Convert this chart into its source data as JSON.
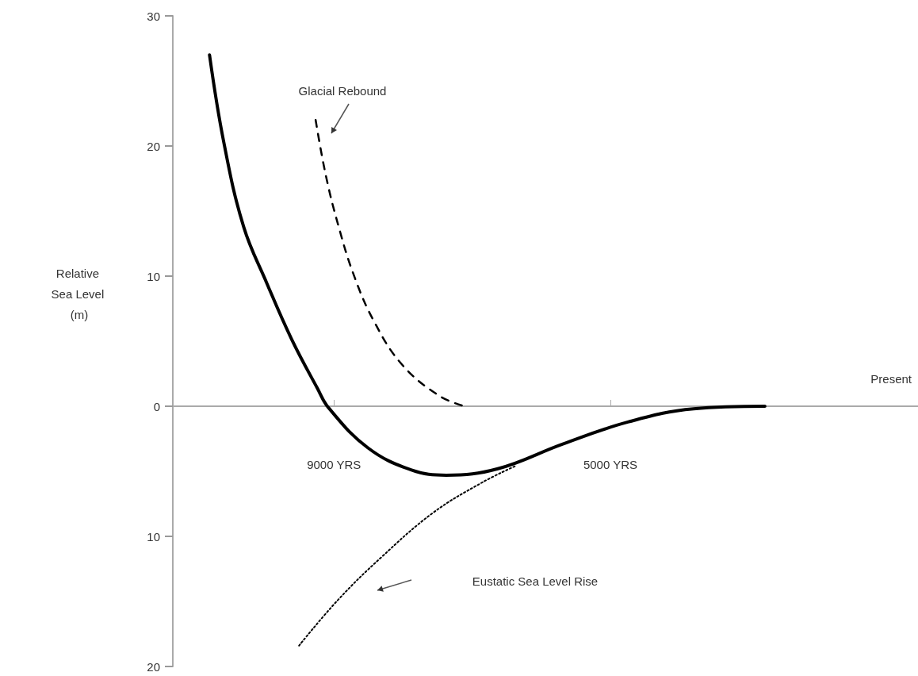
{
  "chart_data": {
    "type": "line",
    "ylabel": "Relative Sea Level (m)",
    "xlim": [
      11330,
      550
    ],
    "ylim": [
      -20,
      30
    ],
    "xticks": [
      {
        "value": 9000,
        "label": "9000 YRS"
      },
      {
        "value": 5000,
        "label": "5000 YRS"
      }
    ],
    "yticks": [
      {
        "value": -20,
        "label": "20"
      },
      {
        "value": -10,
        "label": "10"
      },
      {
        "value": 0,
        "label": "0"
      },
      {
        "value": 10,
        "label": "10"
      },
      {
        "value": 20,
        "label": "20"
      },
      {
        "value": 30,
        "label": "30"
      }
    ],
    "marker": "none",
    "series": [
      {
        "color": "#000000",
        "line_style": "solid",
        "x": [
          10799,
          10593,
          10306,
          9974,
          9607,
          9241,
          9080,
          8507,
          7877,
          7373,
          6628,
          5688,
          4737,
          3797,
          2765
        ],
        "values": [
          27.0,
          20.3,
          13.8,
          9.5,
          5.1,
          1.4,
          -0.1,
          -3.2,
          -4.9,
          -5.3,
          -4.8,
          -2.9,
          -1.2,
          -0.2,
          0
        ]
      },
      {
        "color": "#000000",
        "line_style": "dashed",
        "x": [
          9264,
          9115,
          8931,
          8713,
          8427,
          8014,
          7476,
          7109
        ],
        "values": [
          22.0,
          17.7,
          13.8,
          10.1,
          6.6,
          3.2,
          0.8,
          0
        ]
      },
      {
        "color": "#000000",
        "line_style": "dotted",
        "x": [
          9504,
          8943,
          8312,
          7568,
          6869,
          6376
        ],
        "values": [
          -18.4,
          -14.9,
          -11.6,
          -8.2,
          -5.9,
          -4.6
        ]
      }
    ],
    "annotations": [
      "Glacial Rebound",
      "Eustatic Sea Level Rise",
      "Present"
    ]
  }
}
